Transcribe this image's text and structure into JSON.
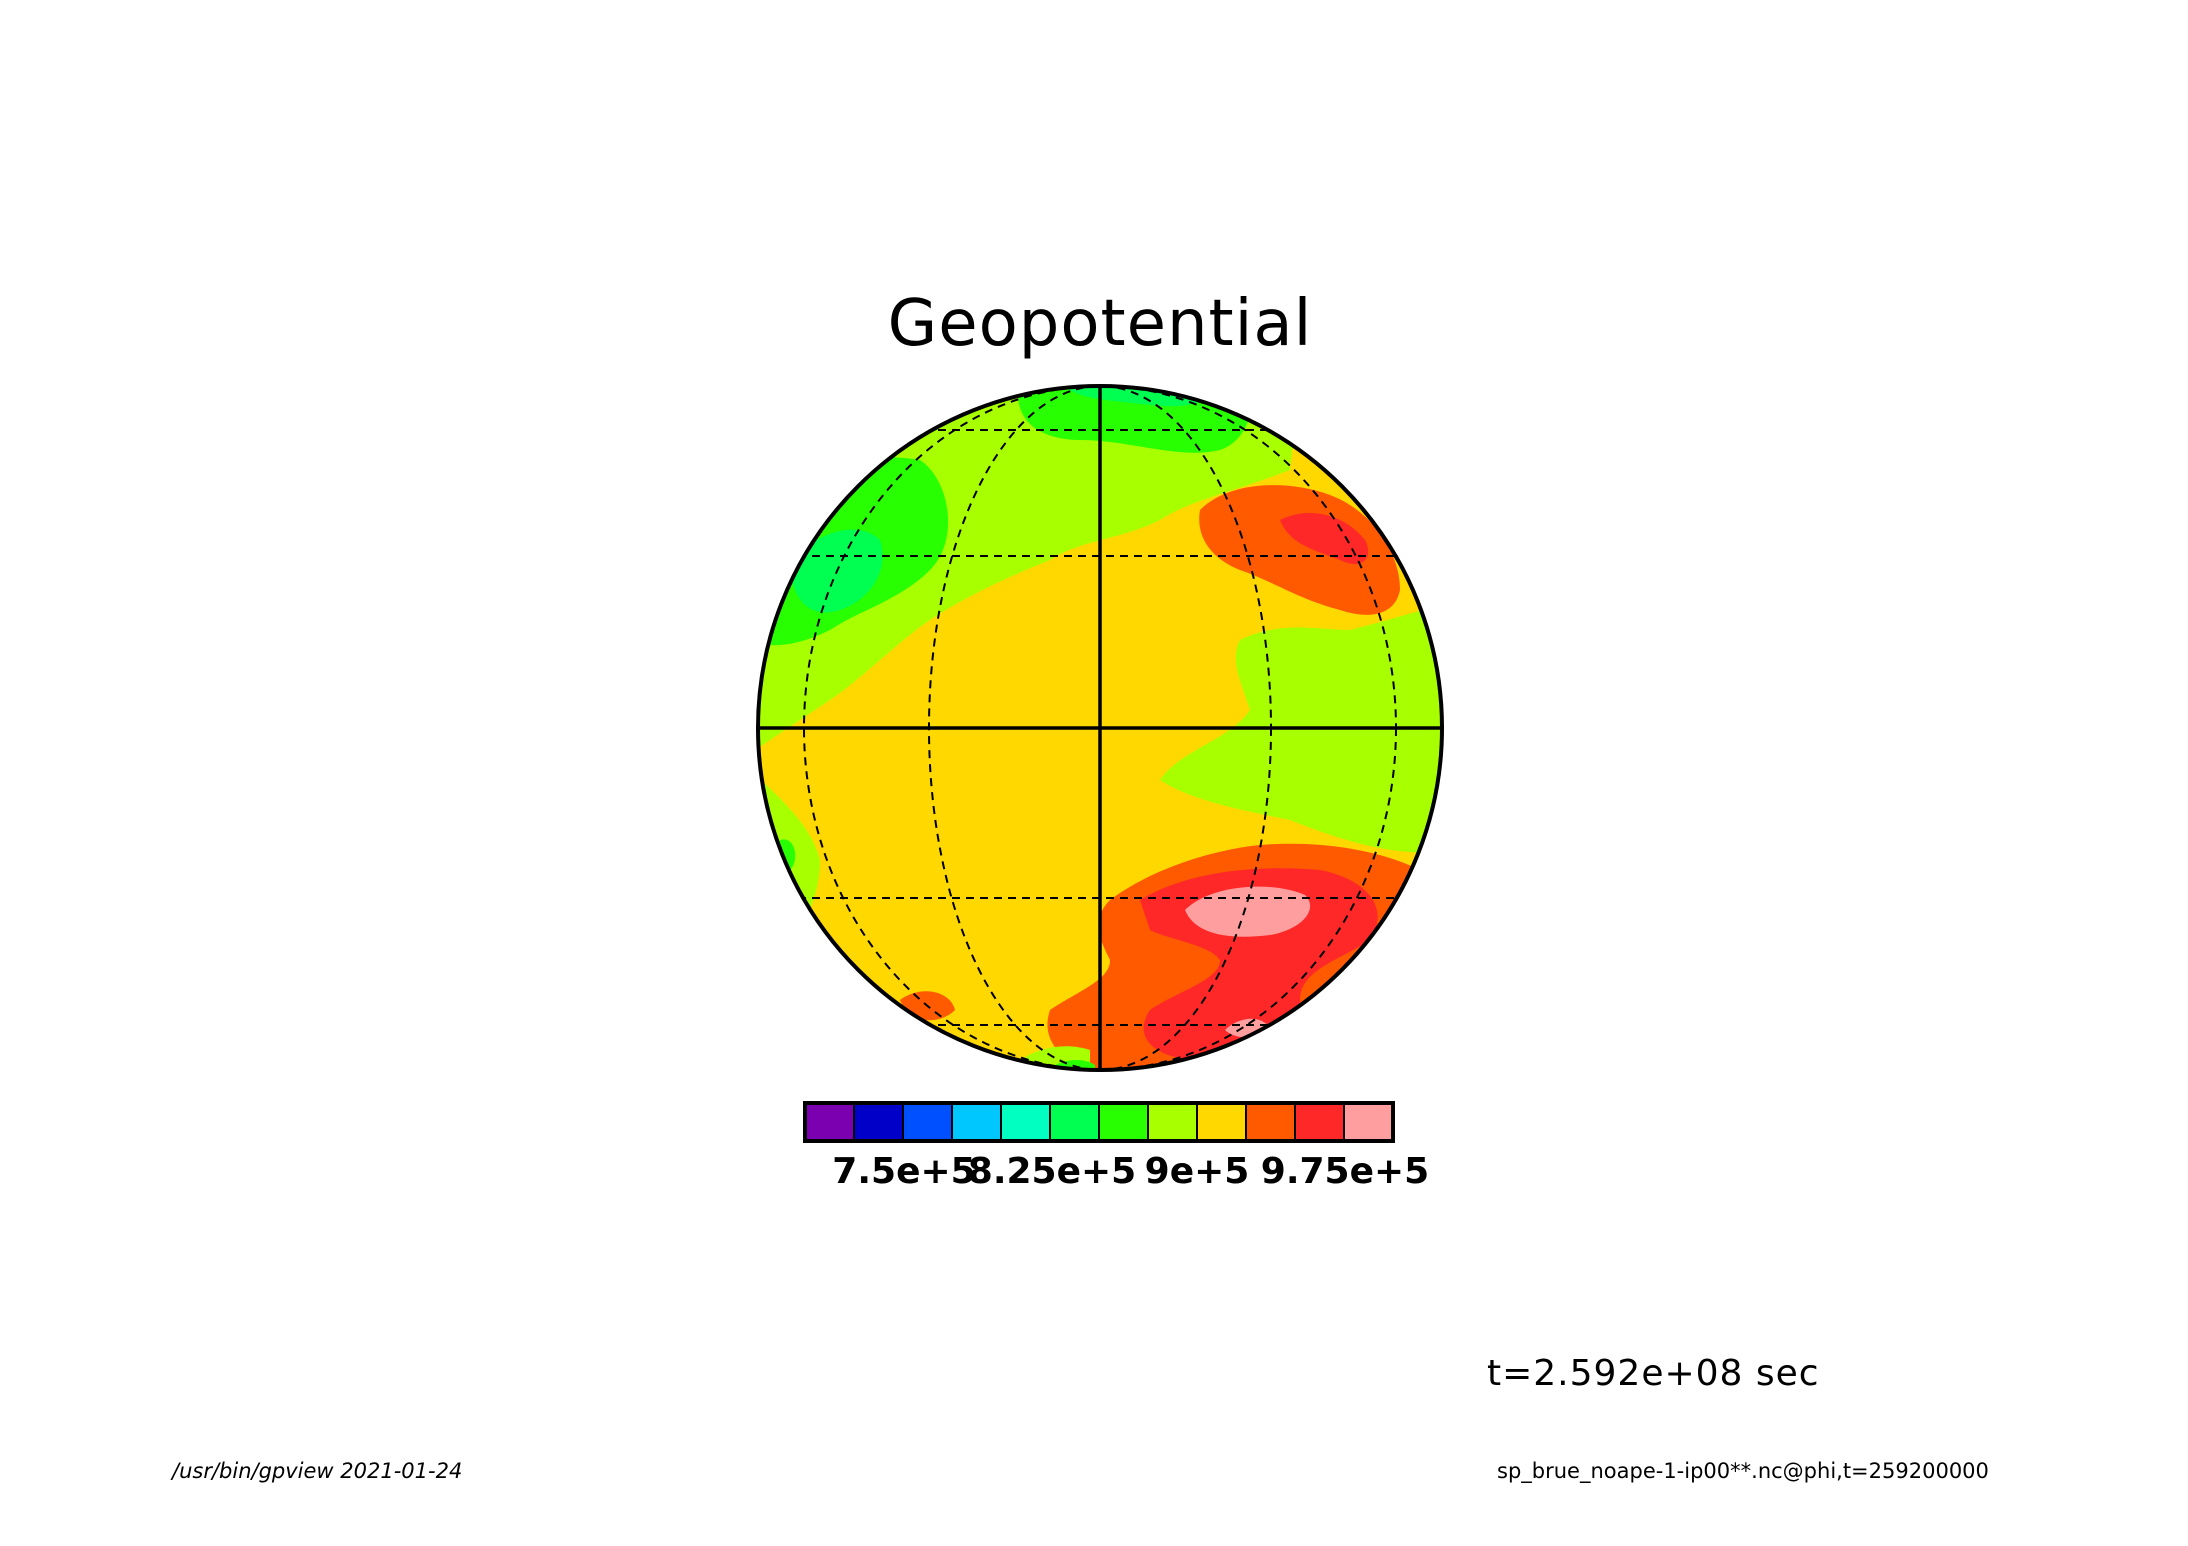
{
  "title": "Geopotential",
  "time_label": "t=2.592e+08 sec",
  "footer": {
    "left": "/usr/bin/gpview  2021-01-24",
    "right": "sp_brue_noape-1-ip00**.nc@phi,t=259200000"
  },
  "colorbar": {
    "colors": [
      "#7b00b0",
      "#0000c8",
      "#0050ff",
      "#00c8ff",
      "#00ffc0",
      "#00ff50",
      "#28ff00",
      "#a8ff00",
      "#ffd800",
      "#ff5a00",
      "#ff2828",
      "#ff9e9e"
    ],
    "tick_labels": [
      "7.5e+5",
      "8.25e+5",
      "9e+5",
      "9.75e+5"
    ]
  },
  "map": {
    "projection": "orthographic",
    "graticule": "dashed",
    "field_colors": {
      "low": "#28ff00",
      "mid": "#a8ff00",
      "base": "#ffd800",
      "high1": "#ff5a00",
      "high2": "#ff2828",
      "max": "#ff9e9e",
      "cold": "#00ff50"
    }
  }
}
